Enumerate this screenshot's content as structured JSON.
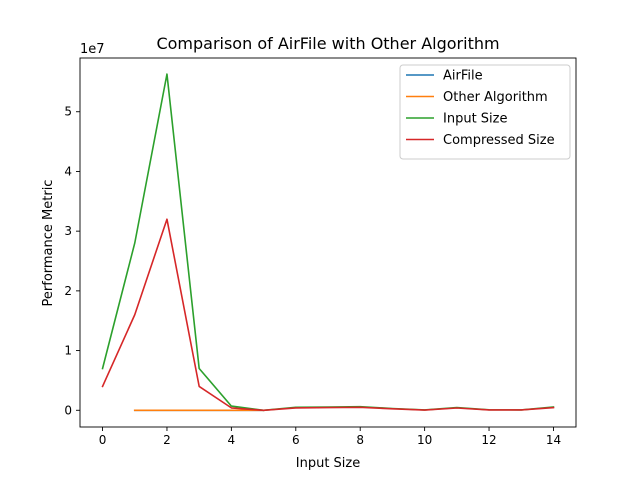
{
  "chart_data": {
    "type": "line",
    "title": "Comparison of AirFile with Other Algorithm",
    "xlabel": "Input Size",
    "ylabel": "Performance Metric",
    "y_offset_label": "1e7",
    "y_scale": 10000000,
    "xlim": [
      -0.7,
      14.7
    ],
    "ylim": [
      -2800000,
      59000000
    ],
    "x_ticks": [
      0,
      2,
      4,
      6,
      8,
      10,
      12,
      14
    ],
    "y_ticks": [
      0,
      10000000,
      20000000,
      30000000,
      40000000,
      50000000
    ],
    "y_tick_labels": [
      "0",
      "1",
      "2",
      "3",
      "4",
      "5"
    ],
    "grid": false,
    "legend_position": "top-right",
    "series": [
      {
        "name": "AirFile",
        "color": "#1f77b4",
        "x": [
          1,
          2,
          3,
          4,
          5
        ],
        "y": [
          0,
          0,
          0,
          0,
          0
        ]
      },
      {
        "name": "Other Algorithm",
        "color": "#ff7f0e",
        "x": [
          1,
          2,
          3,
          4,
          5
        ],
        "y": [
          0,
          0,
          0,
          0,
          0
        ]
      },
      {
        "name": "Input Size",
        "color": "#2ca02c",
        "x": [
          0,
          1,
          2,
          3,
          4,
          5,
          6,
          7,
          8,
          9,
          10,
          11,
          12,
          13,
          14
        ],
        "y": [
          7000000,
          28000000,
          56300000,
          7000000,
          700000,
          0,
          500000,
          550000,
          600000,
          300000,
          50000,
          450000,
          80000,
          60000,
          550000
        ]
      },
      {
        "name": "Compressed Size",
        "color": "#d62728",
        "x": [
          0,
          1,
          2,
          3,
          4,
          5,
          6,
          7,
          8,
          9,
          10,
          11,
          12,
          13,
          14
        ],
        "y": [
          4000000,
          16000000,
          32000000,
          4000000,
          400000,
          0,
          400000,
          450000,
          500000,
          250000,
          30000,
          380000,
          60000,
          50000,
          450000
        ]
      }
    ]
  }
}
